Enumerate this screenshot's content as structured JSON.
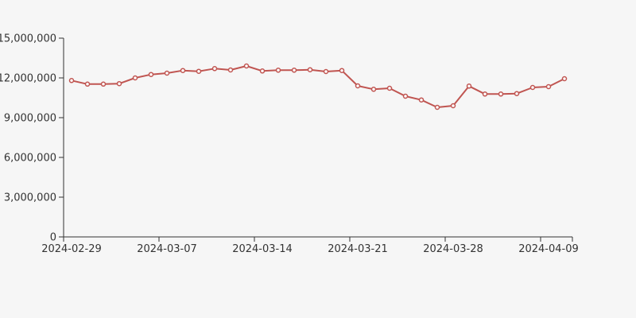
{
  "chart_data": {
    "type": "line",
    "title": "",
    "legend": false,
    "grid": false,
    "background": "#f6f6f6",
    "x_axis": {
      "tick_labels": [
        "2024-02-29",
        "2024-03-07",
        "2024-03-14",
        "2024-03-21",
        "2024-03-28",
        "2024-04-09"
      ],
      "label_indices": [
        0,
        6,
        12,
        18,
        24,
        30
      ],
      "num_points": 32
    },
    "y_axis": {
      "tick_values": [
        0,
        3000000,
        6000000,
        9000000,
        12000000,
        15000000
      ],
      "tick_labels": [
        "0",
        "3,000,000",
        "6,000,000",
        "9,000,000",
        "12,000,000",
        "15,000,000"
      ],
      "range": [
        0,
        15000000
      ]
    },
    "series": [
      {
        "name": "value",
        "color": "#c05551",
        "marker": "open-circle",
        "values": [
          11800000,
          11530000,
          11530000,
          11570000,
          12000000,
          12260000,
          12360000,
          12560000,
          12500000,
          12700000,
          12600000,
          12900000,
          12520000,
          12580000,
          12580000,
          12620000,
          12480000,
          12560000,
          11400000,
          11140000,
          11220000,
          10620000,
          10340000,
          9780000,
          9900000,
          11380000,
          10780000,
          10780000,
          10820000,
          11280000,
          11340000,
          11940000
        ]
      }
    ]
  },
  "style": {
    "axis_color": "#333333",
    "tick_label_color": "#333333",
    "marker_fill": "#ffffff",
    "line_width": 2,
    "marker_radius": 2.5
  }
}
